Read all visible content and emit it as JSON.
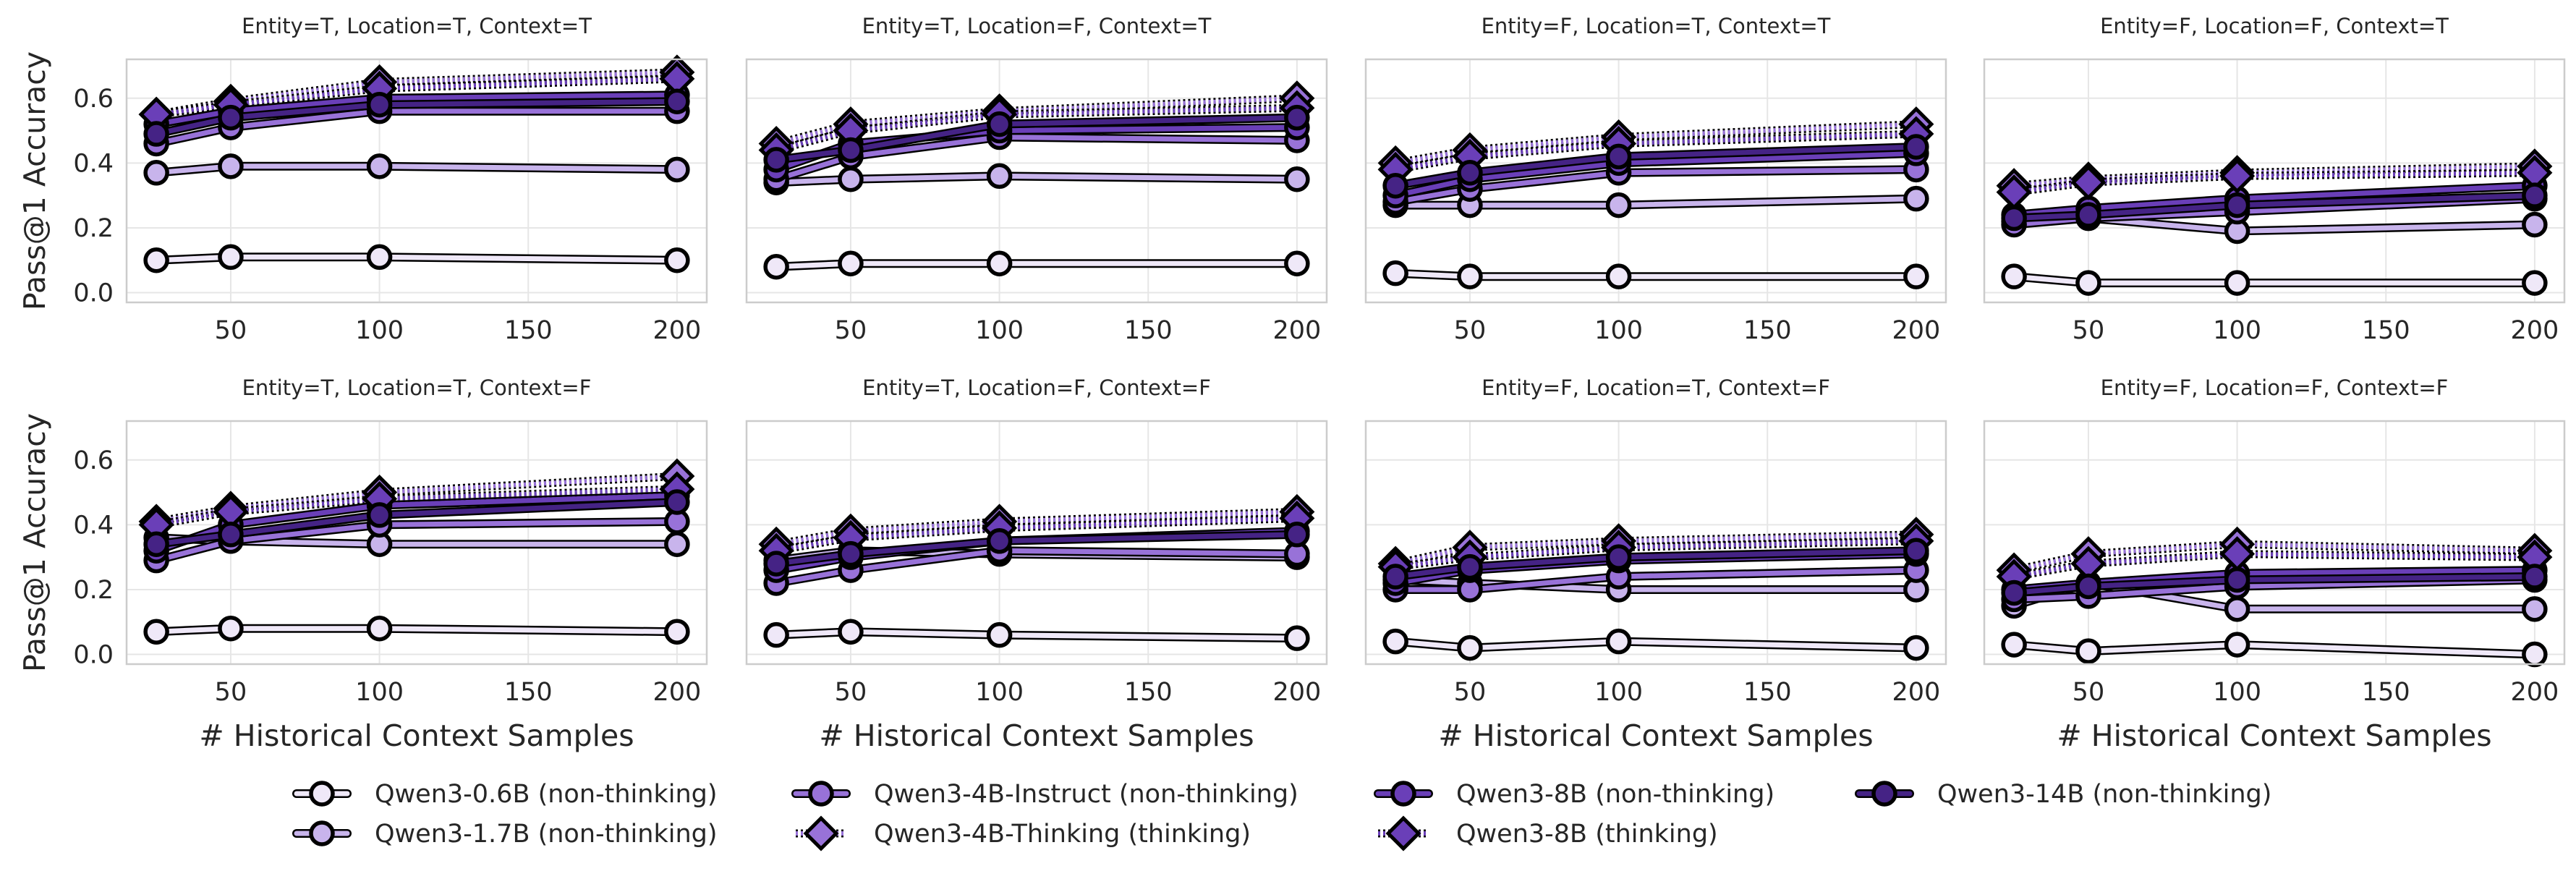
{
  "chart_data": {
    "type": "line",
    "ylabel": "Pass@1 Accuracy",
    "xlabel": "# Historical Context Samples",
    "x": [
      25,
      50,
      100,
      200
    ],
    "xlim": [
      15,
      210
    ],
    "ylim": [
      -0.03,
      0.72
    ],
    "xticks": [
      50,
      100,
      150,
      200
    ],
    "yticks": [
      0.0,
      0.2,
      0.4,
      0.6
    ],
    "series_defs": [
      {
        "name": "Qwen3-0.6B (non-thinking)",
        "color": "#efe8f8",
        "marker": "circle",
        "style": "solid"
      },
      {
        "name": "Qwen3-1.7B (non-thinking)",
        "color": "#c8b4ec",
        "marker": "circle",
        "style": "solid"
      },
      {
        "name": "Qwen3-4B-Instruct (non-thinking)",
        "color": "#9872d8",
        "marker": "circle",
        "style": "solid"
      },
      {
        "name": "Qwen3-4B-Thinking (thinking)",
        "color": "#9872d8",
        "marker": "diamond",
        "style": "dotted"
      },
      {
        "name": "Qwen3-8B (non-thinking)",
        "color": "#6a3fb8",
        "marker": "circle",
        "style": "solid"
      },
      {
        "name": "Qwen3-8B (thinking)",
        "color": "#6a3fb8",
        "marker": "diamond",
        "style": "dotted"
      },
      {
        "name": "Qwen3-14B (non-thinking)",
        "color": "#452385",
        "marker": "circle",
        "style": "solid"
      }
    ],
    "panels": [
      {
        "title": "Entity=T, Location=T, Context=T",
        "values": [
          [
            0.1,
            0.11,
            0.11,
            0.1
          ],
          [
            0.37,
            0.39,
            0.39,
            0.38
          ],
          [
            0.46,
            0.51,
            0.56,
            0.56
          ],
          [
            0.55,
            0.59,
            0.65,
            0.68
          ],
          [
            0.52,
            0.56,
            0.6,
            0.61
          ],
          [
            0.55,
            0.58,
            0.63,
            0.66
          ],
          [
            0.49,
            0.54,
            0.58,
            0.59
          ]
        ]
      },
      {
        "title": "Entity=T, Location=F, Context=T",
        "values": [
          [
            0.08,
            0.09,
            0.09,
            0.09
          ],
          [
            0.34,
            0.35,
            0.36,
            0.35
          ],
          [
            0.35,
            0.42,
            0.48,
            0.47
          ],
          [
            0.46,
            0.52,
            0.56,
            0.6
          ],
          [
            0.38,
            0.46,
            0.5,
            0.51
          ],
          [
            0.44,
            0.5,
            0.55,
            0.57
          ],
          [
            0.41,
            0.44,
            0.52,
            0.54
          ]
        ]
      },
      {
        "title": "Entity=F, Location=T, Context=T",
        "values": [
          [
            0.06,
            0.05,
            0.05,
            0.05
          ],
          [
            0.27,
            0.27,
            0.27,
            0.29
          ],
          [
            0.28,
            0.32,
            0.37,
            0.38
          ],
          [
            0.4,
            0.44,
            0.48,
            0.52
          ],
          [
            0.3,
            0.35,
            0.4,
            0.43
          ],
          [
            0.38,
            0.42,
            0.46,
            0.49
          ],
          [
            0.33,
            0.37,
            0.42,
            0.45
          ]
        ]
      },
      {
        "title": "Entity=F, Location=F, Context=T",
        "values": [
          [
            0.05,
            0.03,
            0.03,
            0.03
          ],
          [
            0.22,
            0.23,
            0.19,
            0.21
          ],
          [
            0.21,
            0.23,
            0.25,
            0.29
          ],
          [
            0.33,
            0.35,
            0.37,
            0.39
          ],
          [
            0.24,
            0.26,
            0.29,
            0.33
          ],
          [
            0.31,
            0.34,
            0.36,
            0.37
          ],
          [
            0.23,
            0.24,
            0.27,
            0.3
          ]
        ]
      },
      {
        "title": "Entity=T, Location=T, Context=F",
        "values": [
          [
            0.07,
            0.08,
            0.08,
            0.07
          ],
          [
            0.36,
            0.35,
            0.34,
            0.34
          ],
          [
            0.29,
            0.35,
            0.4,
            0.41
          ],
          [
            0.41,
            0.45,
            0.5,
            0.55
          ],
          [
            0.32,
            0.4,
            0.46,
            0.49
          ],
          [
            0.4,
            0.44,
            0.48,
            0.51
          ],
          [
            0.34,
            0.37,
            0.43,
            0.47
          ]
        ]
      },
      {
        "title": "Entity=T, Location=F, Context=F",
        "values": [
          [
            0.06,
            0.07,
            0.06,
            0.05
          ],
          [
            0.29,
            0.32,
            0.31,
            0.3
          ],
          [
            0.22,
            0.26,
            0.32,
            0.31
          ],
          [
            0.34,
            0.38,
            0.41,
            0.44
          ],
          [
            0.26,
            0.3,
            0.35,
            0.38
          ],
          [
            0.32,
            0.36,
            0.39,
            0.42
          ],
          [
            0.28,
            0.31,
            0.35,
            0.37
          ]
        ]
      },
      {
        "title": "Entity=F, Location=T, Context=F",
        "values": [
          [
            0.04,
            0.02,
            0.04,
            0.02
          ],
          [
            0.23,
            0.22,
            0.2,
            0.2
          ],
          [
            0.2,
            0.2,
            0.24,
            0.26
          ],
          [
            0.28,
            0.33,
            0.35,
            0.37
          ],
          [
            0.22,
            0.26,
            0.29,
            0.31
          ],
          [
            0.27,
            0.3,
            0.33,
            0.35
          ],
          [
            0.24,
            0.27,
            0.3,
            0.32
          ]
        ]
      },
      {
        "title": "Entity=F, Location=F, Context=F",
        "values": [
          [
            0.03,
            0.01,
            0.03,
            0.0
          ],
          [
            0.15,
            0.22,
            0.14,
            0.14
          ],
          [
            0.17,
            0.18,
            0.21,
            0.23
          ],
          [
            0.26,
            0.31,
            0.34,
            0.32
          ],
          [
            0.2,
            0.22,
            0.25,
            0.26
          ],
          [
            0.24,
            0.28,
            0.31,
            0.3
          ],
          [
            0.19,
            0.21,
            0.23,
            0.24
          ]
        ]
      }
    ]
  }
}
